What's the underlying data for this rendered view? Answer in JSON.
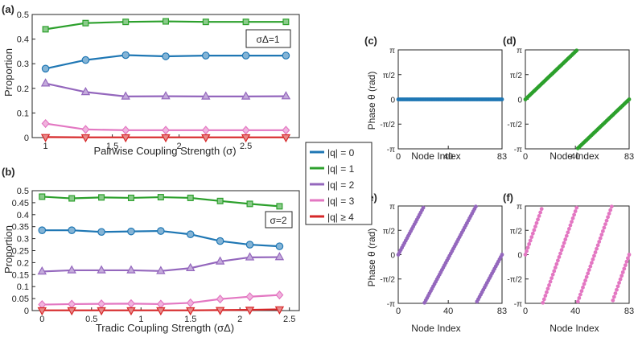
{
  "colors": {
    "q0": "#1f77b4",
    "q1": "#2ca02c",
    "q2": "#9467bd",
    "q3": "#e377c2",
    "q4": "#d62728",
    "axis": "#262626"
  },
  "legend": {
    "entries": [
      "|q| = 0",
      "|q| = 1",
      "|q| = 2",
      "|q| = 3",
      "|q| ≥ 4"
    ]
  },
  "chart_data": [
    {
      "panel": "(a)",
      "type": "line",
      "xlabel": "Pairwise Coupling Strength (σ)",
      "ylabel": "Proportion",
      "annotation": "σΔ=1",
      "xlim": [
        0.9,
        2.9
      ],
      "ylim": [
        0,
        0.5
      ],
      "xticks": [
        1,
        1.5,
        2,
        2.5
      ],
      "xtick_labels": [
        "1",
        "1.5",
        "2",
        "2.5"
      ],
      "yticks": [
        0,
        0.1,
        0.2,
        0.3,
        0.4,
        0.5
      ],
      "ytick_labels": [
        "0",
        "0.1",
        "0.2",
        "0.3",
        "0.4",
        "0.5"
      ],
      "x": [
        1.0,
        1.3,
        1.6,
        1.9,
        2.2,
        2.5,
        2.8
      ],
      "series": [
        {
          "name": "|q| = 0",
          "marker": "circle",
          "values": [
            0.28,
            0.315,
            0.335,
            0.33,
            0.333,
            0.333,
            0.333
          ]
        },
        {
          "name": "|q| = 1",
          "marker": "square",
          "values": [
            0.44,
            0.465,
            0.47,
            0.472,
            0.47,
            0.47,
            0.47
          ]
        },
        {
          "name": "|q| = 2",
          "marker": "triangle-up",
          "values": [
            0.22,
            0.185,
            0.167,
            0.168,
            0.167,
            0.167,
            0.168
          ]
        },
        {
          "name": "|q| = 3",
          "marker": "diamond",
          "values": [
            0.057,
            0.033,
            0.03,
            0.03,
            0.03,
            0.03,
            0.03
          ]
        },
        {
          "name": "|q| ≥ 4",
          "marker": "triangle-down",
          "values": [
            0.002,
            0.001,
            0.001,
            0.001,
            0.001,
            0.001,
            0.001
          ]
        }
      ]
    },
    {
      "panel": "(b)",
      "type": "line",
      "xlabel": "Tradic Coupling Strength (σΔ)",
      "ylabel": "Proportion",
      "annotation": "σ=2",
      "xlim": [
        -0.1,
        2.6
      ],
      "ylim": [
        0,
        0.5
      ],
      "xticks": [
        0,
        0.5,
        1,
        1.5,
        2,
        2.5
      ],
      "xtick_labels": [
        "0",
        "0.5",
        "1",
        "1.5",
        "2",
        "2.5"
      ],
      "yticks": [
        0,
        0.05,
        0.1,
        0.15,
        0.2,
        0.25,
        0.3,
        0.35,
        0.4,
        0.45,
        0.5
      ],
      "ytick_labels": [
        "0",
        "0.05",
        "0.1",
        "0.15",
        "0.2",
        "0.25",
        "0.3",
        "0.35",
        "0.4",
        "0.45",
        "0.5"
      ],
      "x": [
        0,
        0.3,
        0.6,
        0.9,
        1.2,
        1.5,
        1.8,
        2.1,
        2.4
      ],
      "series": [
        {
          "name": "|q| = 0",
          "marker": "circle",
          "values": [
            0.335,
            0.335,
            0.328,
            0.33,
            0.332,
            0.318,
            0.29,
            0.275,
            0.268
          ]
        },
        {
          "name": "|q| = 1",
          "marker": "square",
          "values": [
            0.475,
            0.468,
            0.472,
            0.47,
            0.473,
            0.47,
            0.457,
            0.445,
            0.435
          ]
        },
        {
          "name": "|q| = 2",
          "marker": "triangle-up",
          "values": [
            0.163,
            0.168,
            0.168,
            0.168,
            0.165,
            0.177,
            0.205,
            0.222,
            0.223
          ]
        },
        {
          "name": "|q| = 3",
          "marker": "diamond",
          "values": [
            0.025,
            0.027,
            0.028,
            0.029,
            0.027,
            0.032,
            0.048,
            0.058,
            0.065
          ]
        },
        {
          "name": "|q| ≥ 4",
          "marker": "triangle-down",
          "values": [
            0.001,
            0.001,
            0.001,
            0.001,
            0.001,
            0.001,
            0.002,
            0.003,
            0.005
          ]
        }
      ]
    },
    {
      "panel": "(c)",
      "type": "scatter",
      "series_ref": "|q| = 0",
      "winding": 0,
      "offset": 0,
      "xlabel": "Node Index",
      "ylabel": "Phase θ (rad)",
      "xlim": [
        0,
        83
      ],
      "ylim": [
        -3.1416,
        3.1416
      ],
      "xtick_labels": [
        "0",
        "40",
        "83"
      ],
      "ytick_labels": [
        "π",
        "π/2",
        "0",
        "-π/2",
        "-π"
      ]
    },
    {
      "panel": "(d)",
      "type": "scatter",
      "series_ref": "|q| = 1",
      "winding": 1,
      "offset": 0,
      "xlabel": "Node Index",
      "ylabel": "",
      "xlim": [
        0,
        83
      ],
      "ylim": [
        -3.1416,
        3.1416
      ],
      "xtick_labels": [
        "0",
        "40",
        "83"
      ],
      "ytick_labels": [
        "π",
        "π/2",
        "0",
        "-π/2",
        "-π"
      ]
    },
    {
      "panel": "(e)",
      "type": "scatter",
      "series_ref": "|q| = 2",
      "winding": 2,
      "offset": 0,
      "xlabel": "Node Index",
      "ylabel": "Phase θ (rad)",
      "xlim": [
        0,
        83
      ],
      "ylim": [
        -3.1416,
        3.1416
      ],
      "xtick_labels": [
        "0",
        "40",
        "83"
      ],
      "ytick_labels": [
        "π",
        "π/2",
        "0",
        "-π/2",
        "-π"
      ]
    },
    {
      "panel": "(f)",
      "type": "scatter",
      "series_ref": "|q| = 3",
      "winding": 3,
      "offset": 0,
      "xlabel": "Node Index",
      "ylabel": "",
      "xlim": [
        0,
        83
      ],
      "ylim": [
        -3.1416,
        3.1416
      ],
      "xtick_labels": [
        "0",
        "40",
        "83"
      ],
      "ytick_labels": [
        "π",
        "π/2",
        "0",
        "-π/2",
        "-π"
      ]
    }
  ]
}
